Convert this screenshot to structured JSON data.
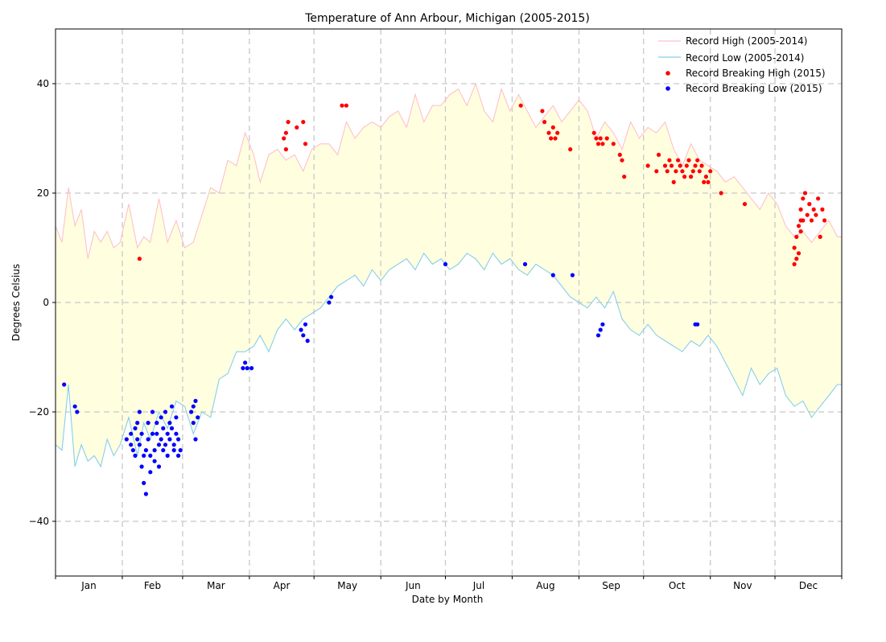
{
  "chart_data": {
    "type": "line",
    "title": "Temperature of Ann Arbour, Michigan (2005-2015)",
    "xlabel": "Date by Month",
    "ylabel": "Degrees Celsius",
    "xlim": [
      0,
      365
    ],
    "ylim": [
      -50,
      50
    ],
    "y_ticks": [
      -40,
      -20,
      0,
      20,
      40
    ],
    "y_tick_labels": [
      "−40",
      "−20",
      "0",
      "20",
      "40"
    ],
    "month_labels": [
      "Jan",
      "Feb",
      "Mar",
      "Apr",
      "May",
      "Jun",
      "Jul",
      "Aug",
      "Sep",
      "Oct",
      "Nov",
      "Dec"
    ],
    "month_starts": [
      0,
      31,
      59,
      90,
      120,
      151,
      181,
      212,
      243,
      273,
      304,
      334
    ],
    "grid": true,
    "legend_position": "top-right",
    "fill_between": {
      "color": "#ffffe0"
    },
    "series": [
      {
        "name": "Record High (2005-2014)",
        "color": "#ffc0cb",
        "x": [
          0,
          3,
          6,
          9,
          12,
          15,
          18,
          21,
          24,
          27,
          30,
          34,
          38,
          41,
          44,
          48,
          52,
          56,
          60,
          64,
          68,
          72,
          76,
          80,
          84,
          88,
          92,
          95,
          99,
          103,
          107,
          111,
          115,
          119,
          123,
          127,
          131,
          135,
          139,
          143,
          147,
          151,
          155,
          159,
          163,
          167,
          171,
          175,
          179,
          183,
          187,
          191,
          195,
          199,
          203,
          207,
          211,
          215,
          219,
          223,
          227,
          231,
          235,
          239,
          243,
          247,
          251,
          255,
          259,
          263,
          267,
          271,
          275,
          279,
          283,
          287,
          291,
          295,
          299,
          303,
          307,
          311,
          315,
          319,
          323,
          327,
          331,
          335,
          339,
          343,
          347,
          351,
          355,
          359,
          363,
          365
        ],
        "y": [
          14,
          11,
          21,
          14,
          17,
          8,
          13,
          11,
          13,
          10,
          11,
          18,
          10,
          12,
          11,
          19,
          11,
          15,
          10,
          11,
          16,
          21,
          20,
          26,
          25,
          31,
          27,
          22,
          27,
          28,
          26,
          27,
          24,
          28,
          29,
          29,
          27,
          33,
          30,
          32,
          33,
          32,
          34,
          35,
          32,
          38,
          33,
          36,
          36,
          38,
          39,
          36,
          40,
          35,
          33,
          39,
          35,
          38,
          35,
          32,
          34,
          36,
          33,
          35,
          37,
          35,
          30,
          33,
          31,
          28,
          33,
          30,
          32,
          31,
          33,
          28,
          25,
          29,
          26,
          25,
          24,
          22,
          23,
          21,
          19,
          17,
          20,
          18,
          14,
          12,
          13,
          11,
          13,
          15,
          12,
          12
        ]
      },
      {
        "name": "Record Low (2005-2014)",
        "color": "#87ceeb",
        "x": [
          0,
          3,
          6,
          9,
          12,
          15,
          18,
          21,
          24,
          27,
          30,
          34,
          38,
          41,
          44,
          48,
          52,
          56,
          60,
          64,
          68,
          72,
          76,
          80,
          84,
          88,
          92,
          95,
          99,
          103,
          107,
          111,
          115,
          119,
          123,
          127,
          131,
          135,
          139,
          143,
          147,
          151,
          155,
          159,
          163,
          167,
          171,
          175,
          179,
          183,
          187,
          191,
          195,
          199,
          203,
          207,
          211,
          215,
          219,
          223,
          227,
          231,
          235,
          239,
          243,
          247,
          251,
          255,
          259,
          263,
          267,
          271,
          275,
          279,
          283,
          287,
          291,
          295,
          299,
          303,
          307,
          311,
          315,
          319,
          323,
          327,
          331,
          335,
          339,
          343,
          347,
          351,
          355,
          359,
          363,
          365
        ],
        "y": [
          -26,
          -27,
          -15,
          -30,
          -26,
          -29,
          -28,
          -30,
          -25,
          -28,
          -26,
          -21,
          -28,
          -22,
          -25,
          -20,
          -23,
          -18,
          -19,
          -24,
          -20,
          -21,
          -14,
          -13,
          -9,
          -9,
          -8,
          -6,
          -9,
          -5,
          -3,
          -5,
          -3,
          -2,
          -1,
          1,
          3,
          4,
          5,
          3,
          6,
          4,
          6,
          7,
          8,
          6,
          9,
          7,
          8,
          6,
          7,
          9,
          8,
          6,
          9,
          7,
          8,
          6,
          5,
          7,
          6,
          5,
          3,
          1,
          0,
          -1,
          1,
          -1,
          2,
          -3,
          -5,
          -6,
          -4,
          -6,
          -7,
          -8,
          -9,
          -7,
          -8,
          -6,
          -8,
          -11,
          -14,
          -17,
          -12,
          -15,
          -13,
          -12,
          -17,
          -19,
          -18,
          -21,
          -19,
          -17,
          -15,
          -15
        ]
      },
      {
        "name": "Record Breaking High (2015)",
        "color": "#ff0000",
        "type": "scatter",
        "x": [
          39,
          106,
          107,
          107,
          108,
          112,
          115,
          116,
          133,
          135,
          216,
          226,
          227,
          229,
          230,
          231,
          232,
          233,
          239,
          250,
          251,
          252,
          253,
          254,
          256,
          259,
          262,
          263,
          264,
          275,
          279,
          280,
          283,
          284,
          285,
          286,
          287,
          288,
          289,
          290,
          291,
          292,
          293,
          294,
          295,
          296,
          297,
          298,
          299,
          300,
          301,
          302,
          303,
          304,
          309,
          320,
          343,
          343,
          344,
          344,
          345,
          345,
          346,
          346,
          346,
          347,
          347,
          348,
          349,
          350,
          351,
          352,
          353,
          354,
          355,
          356,
          357
        ],
        "y": [
          8,
          30,
          31,
          28,
          33,
          32,
          33,
          29,
          36,
          36,
          36,
          35,
          33,
          31,
          30,
          32,
          30,
          31,
          28,
          31,
          30,
          29,
          30,
          29,
          30,
          29,
          27,
          26,
          23,
          25,
          24,
          27,
          25,
          24,
          26,
          25,
          22,
          24,
          26,
          25,
          24,
          23,
          25,
          26,
          23,
          24,
          25,
          26,
          24,
          25,
          22,
          23,
          22,
          24,
          20,
          18,
          10,
          7,
          12,
          8,
          14,
          9,
          13,
          17,
          15,
          19,
          15,
          20,
          16,
          18,
          15,
          17,
          16,
          19,
          12,
          17,
          15
        ]
      },
      {
        "name": "Record Breaking Low (2015)",
        "color": "#0000ff",
        "type": "scatter",
        "x": [
          4,
          9,
          10,
          33,
          35,
          35,
          36,
          37,
          37,
          38,
          38,
          39,
          39,
          40,
          40,
          41,
          41,
          42,
          42,
          43,
          43,
          44,
          44,
          45,
          45,
          46,
          46,
          47,
          47,
          48,
          48,
          49,
          49,
          50,
          50,
          51,
          51,
          52,
          52,
          53,
          53,
          54,
          54,
          55,
          55,
          56,
          56,
          57,
          57,
          58,
          63,
          64,
          64,
          65,
          65,
          66,
          87,
          88,
          89,
          91,
          114,
          115,
          116,
          117,
          127,
          128,
          181,
          218,
          231,
          240,
          252,
          253,
          254,
          297,
          298
        ],
        "y": [
          -15,
          -19,
          -20,
          -25,
          -24,
          -26,
          -27,
          -23,
          -28,
          -25,
          -22,
          -26,
          -20,
          -30,
          -24,
          -28,
          -33,
          -27,
          -35,
          -25,
          -22,
          -28,
          -31,
          -24,
          -20,
          -27,
          -29,
          -22,
          -24,
          -26,
          -30,
          -21,
          -25,
          -27,
          -23,
          -20,
          -26,
          -24,
          -28,
          -22,
          -25,
          -19,
          -23,
          -27,
          -26,
          -21,
          -24,
          -25,
          -28,
          -27,
          -20,
          -22,
          -19,
          -25,
          -18,
          -21,
          -12,
          -11,
          -12,
          -12,
          -5,
          -6,
          -4,
          -7,
          0,
          1,
          7,
          7,
          5,
          5,
          -6,
          -5,
          -4,
          -4,
          -4
        ]
      }
    ]
  }
}
